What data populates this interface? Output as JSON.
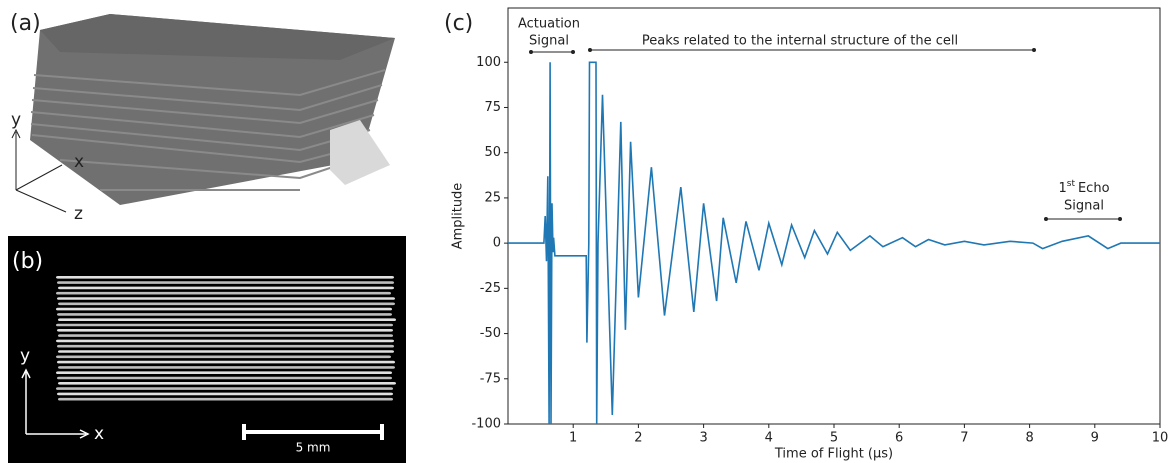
{
  "figure": {
    "panel_labels": [
      "(a)",
      "(b)",
      "(c)"
    ],
    "panel_a": {
      "axis_labels": [
        "y",
        "x",
        "z"
      ]
    },
    "panel_b": {
      "axis_labels": [
        "y",
        "x"
      ],
      "scale_bar": "5 mm"
    }
  },
  "chart_data": {
    "type": "line",
    "x_label": "Time of Flight (µs)",
    "y_label": "Amplitude",
    "annotations": {
      "actuation": [
        "Actuation",
        "Signal"
      ],
      "peaks": "Peaks related to the internal structure of the cell",
      "echo": {
        "number": "1",
        "superscript": "st",
        "text": "Echo",
        "line2": "Signal"
      }
    },
    "color": "#1f77b4",
    "x": [
      0,
      0.55,
      0.57,
      0.59,
      0.61,
      0.63,
      0.645,
      0.66,
      0.675,
      0.69,
      0.7,
      0.72,
      0.75,
      1.2,
      1.21,
      1.24,
      1.25,
      1.35,
      1.36,
      1.38,
      1.45,
      1.6,
      1.73,
      1.8,
      1.88,
      2.0,
      2.2,
      2.4,
      2.65,
      2.85,
      3.0,
      3.2,
      3.3,
      3.5,
      3.65,
      3.85,
      4.0,
      4.2,
      4.35,
      4.55,
      4.7,
      4.9,
      5.05,
      5.25,
      5.55,
      5.75,
      6.05,
      6.25,
      6.45,
      6.7,
      7.0,
      7.3,
      7.7,
      8.05,
      8.2,
      8.5,
      8.9,
      9.2,
      9.4,
      10
    ],
    "values": [
      0,
      0,
      15,
      -10,
      37,
      -100,
      100,
      -100,
      22,
      -5,
      3,
      -7,
      -7,
      -7,
      -55,
      0,
      100,
      100,
      -100,
      0,
      82,
      -95,
      67,
      -48,
      56,
      -30,
      42,
      -40,
      31,
      -38,
      22,
      -32,
      14,
      -22,
      12,
      -15,
      11,
      -12,
      10,
      -8,
      7,
      -6,
      6,
      -4,
      4,
      -2,
      3,
      -2,
      2,
      -1,
      1,
      -1,
      1,
      0,
      -3,
      1,
      4,
      -3,
      0,
      0
    ],
    "xlim": [
      0,
      10
    ],
    "ylim": [
      -100,
      130
    ],
    "xticks": [
      1,
      2,
      3,
      4,
      5,
      6,
      7,
      8,
      9,
      10
    ],
    "yticks": [
      -100,
      -75,
      -50,
      -25,
      0,
      25,
      50,
      75,
      100
    ]
  }
}
